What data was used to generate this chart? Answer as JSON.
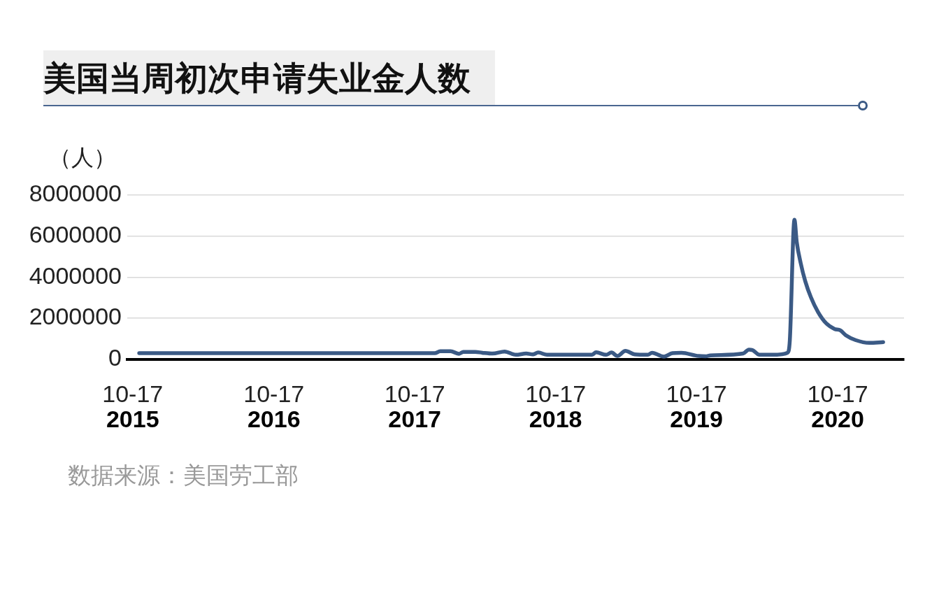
{
  "chart_data": {
    "type": "line",
    "title": "美国当周初次申请失业金人数",
    "ylabel": "（人）",
    "annotations": [
      "数据来源：美国劳工部"
    ],
    "x": [
      "2015-11-03",
      "2017-12-08",
      "2017-12-22",
      "2018-01-18",
      "2018-02-09",
      "2018-02-20",
      "2018-03-23",
      "2018-04-10",
      "2018-05-07",
      "2018-06-07",
      "2018-07-06",
      "2018-08-02",
      "2018-08-19",
      "2018-09-02",
      "2018-09-25",
      "2019-01-19",
      "2019-01-30",
      "2019-02-25",
      "2019-03-11",
      "2019-03-26",
      "2019-04-16",
      "2019-05-10",
      "2019-06-13",
      "2019-06-24",
      "2019-07-25",
      "2019-08-16",
      "2019-09-08",
      "2019-10-23",
      "2019-11-10",
      "2019-11-22",
      "2020-02-15",
      "2020-03-01",
      "2020-03-10",
      "2020-03-28",
      "2020-05-03",
      "2020-06-09",
      "2020-06-15",
      "2020-06-27",
      "2020-07-03",
      "2020-07-13",
      "2020-07-25",
      "2020-08-09",
      "2020-08-27",
      "2020-09-17",
      "2020-10-09",
      "2020-10-24",
      "2020-11-08",
      "2020-12-02",
      "2021-01-07",
      "2021-02-12"
    ],
    "series": [
      {
        "color": "#3b5a85",
        "values": [
          290000,
          290000,
          380000,
          380000,
          260000,
          350000,
          350000,
          310000,
          270000,
          370000,
          210000,
          270000,
          230000,
          320000,
          210000,
          210000,
          330000,
          210000,
          320000,
          150000,
          400000,
          230000,
          210000,
          310000,
          120000,
          290000,
          310000,
          150000,
          140000,
          180000,
          270000,
          460000,
          440000,
          210000,
          210000,
          310000,
          910000,
          6800000,
          5700000,
          4700000,
          3800000,
          3000000,
          2300000,
          1750000,
          1470000,
          1400000,
          1150000,
          930000,
          790000,
          830000
        ]
      }
    ],
    "xlim": [
      "2015-10-03",
      "2021-04-07"
    ],
    "xticks": [
      {
        "value": "2015-10-17",
        "label": "10-17\n2015"
      },
      {
        "value": "2016-10-17",
        "label": "10-17\n2016"
      },
      {
        "value": "2017-10-17",
        "label": "10-17\n2017"
      },
      {
        "value": "2018-10-17",
        "label": "10-17\n2018"
      },
      {
        "value": "2019-10-17",
        "label": "10-17\n2019"
      },
      {
        "value": "2020-10-17",
        "label": "10-17\n2020"
      }
    ],
    "ylim": [
      0,
      8000000
    ],
    "yticks": [
      0,
      2000000,
      4000000,
      6000000,
      8000000
    ],
    "grid": "y"
  }
}
